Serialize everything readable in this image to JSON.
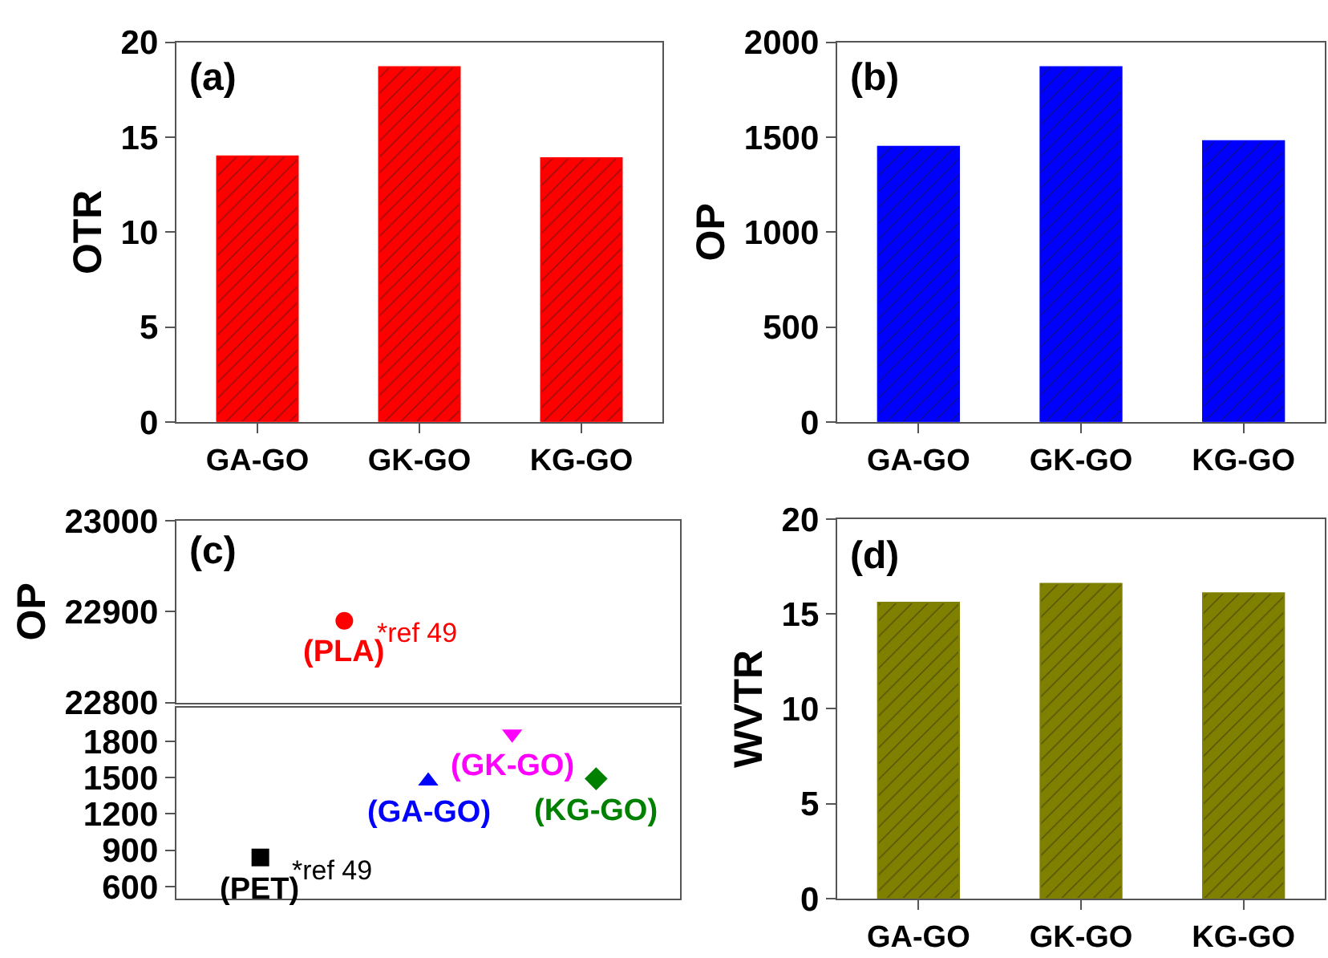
{
  "chart_data": [
    {
      "type": "bar",
      "title": "(a)",
      "ylabel": "OTR",
      "categories": [
        "GA-GO",
        "GK-GO",
        "KG-GO"
      ],
      "values": [
        14.0,
        18.7,
        13.9
      ],
      "color": "#ff0000",
      "ylim": [
        0,
        20
      ],
      "yticks": [
        0,
        5,
        10,
        15,
        20
      ]
    },
    {
      "type": "bar",
      "title": "(b)",
      "ylabel": "OP",
      "categories": [
        "GA-GO",
        "GK-GO",
        "KG-GO"
      ],
      "values": [
        1450,
        1870,
        1480
      ],
      "color": "#0000ff",
      "ylim": [
        0,
        2000
      ],
      "yticks": [
        0,
        500,
        1000,
        1500,
        2000
      ]
    },
    {
      "type": "scatter",
      "title": "(c)",
      "ylabel": "OP",
      "categories": [
        null,
        null,
        null,
        null,
        null
      ],
      "ylim": [
        22800,
        23000
      ],
      "yticks": [
        22800,
        22900,
        23000
      ],
      "tick_labels": "y",
      "series": [
        {
          "name": "(PLA)",
          "color": "#ff0000",
          "marker": "circle",
          "values": [
            null,
            22890,
            null,
            null,
            null
          ]
        }
      ],
      "annotations": [
        "*ref 49"
      ]
    },
    {
      "type": "scatter",
      "categories": [
        null,
        null,
        null,
        null,
        null
      ],
      "ylim": [
        500,
        2080
      ],
      "yticks": [
        600,
        900,
        1200,
        1500,
        1800
      ],
      "tick_labels": "y",
      "series": [
        {
          "name": "(PET)",
          "color": "#000000",
          "marker": "square",
          "values": [
            840,
            null,
            null,
            null,
            null
          ]
        },
        {
          "name": "(GA-GO)",
          "color": "#0000ff",
          "marker": "triangle",
          "values": [
            null,
            null,
            1470,
            null,
            null
          ]
        },
        {
          "name": "(GK-GO)",
          "color": "#ff00ff",
          "marker": "triangle-down",
          "values": [
            null,
            null,
            null,
            1860,
            null
          ]
        },
        {
          "name": "(KG-GO)",
          "color": "#008000",
          "marker": "diamond",
          "values": [
            null,
            null,
            null,
            null,
            1490
          ]
        }
      ],
      "annotations": [
        "*ref 49"
      ]
    },
    {
      "type": "bar",
      "title": "(d)",
      "ylabel": "WVTR",
      "categories": [
        "GA-GO",
        "GK-GO",
        "KG-GO"
      ],
      "values": [
        15.6,
        16.6,
        16.1
      ],
      "color": "#808000",
      "ylim": [
        0,
        20
      ],
      "yticks": [
        0,
        5,
        10,
        15,
        20
      ]
    }
  ]
}
